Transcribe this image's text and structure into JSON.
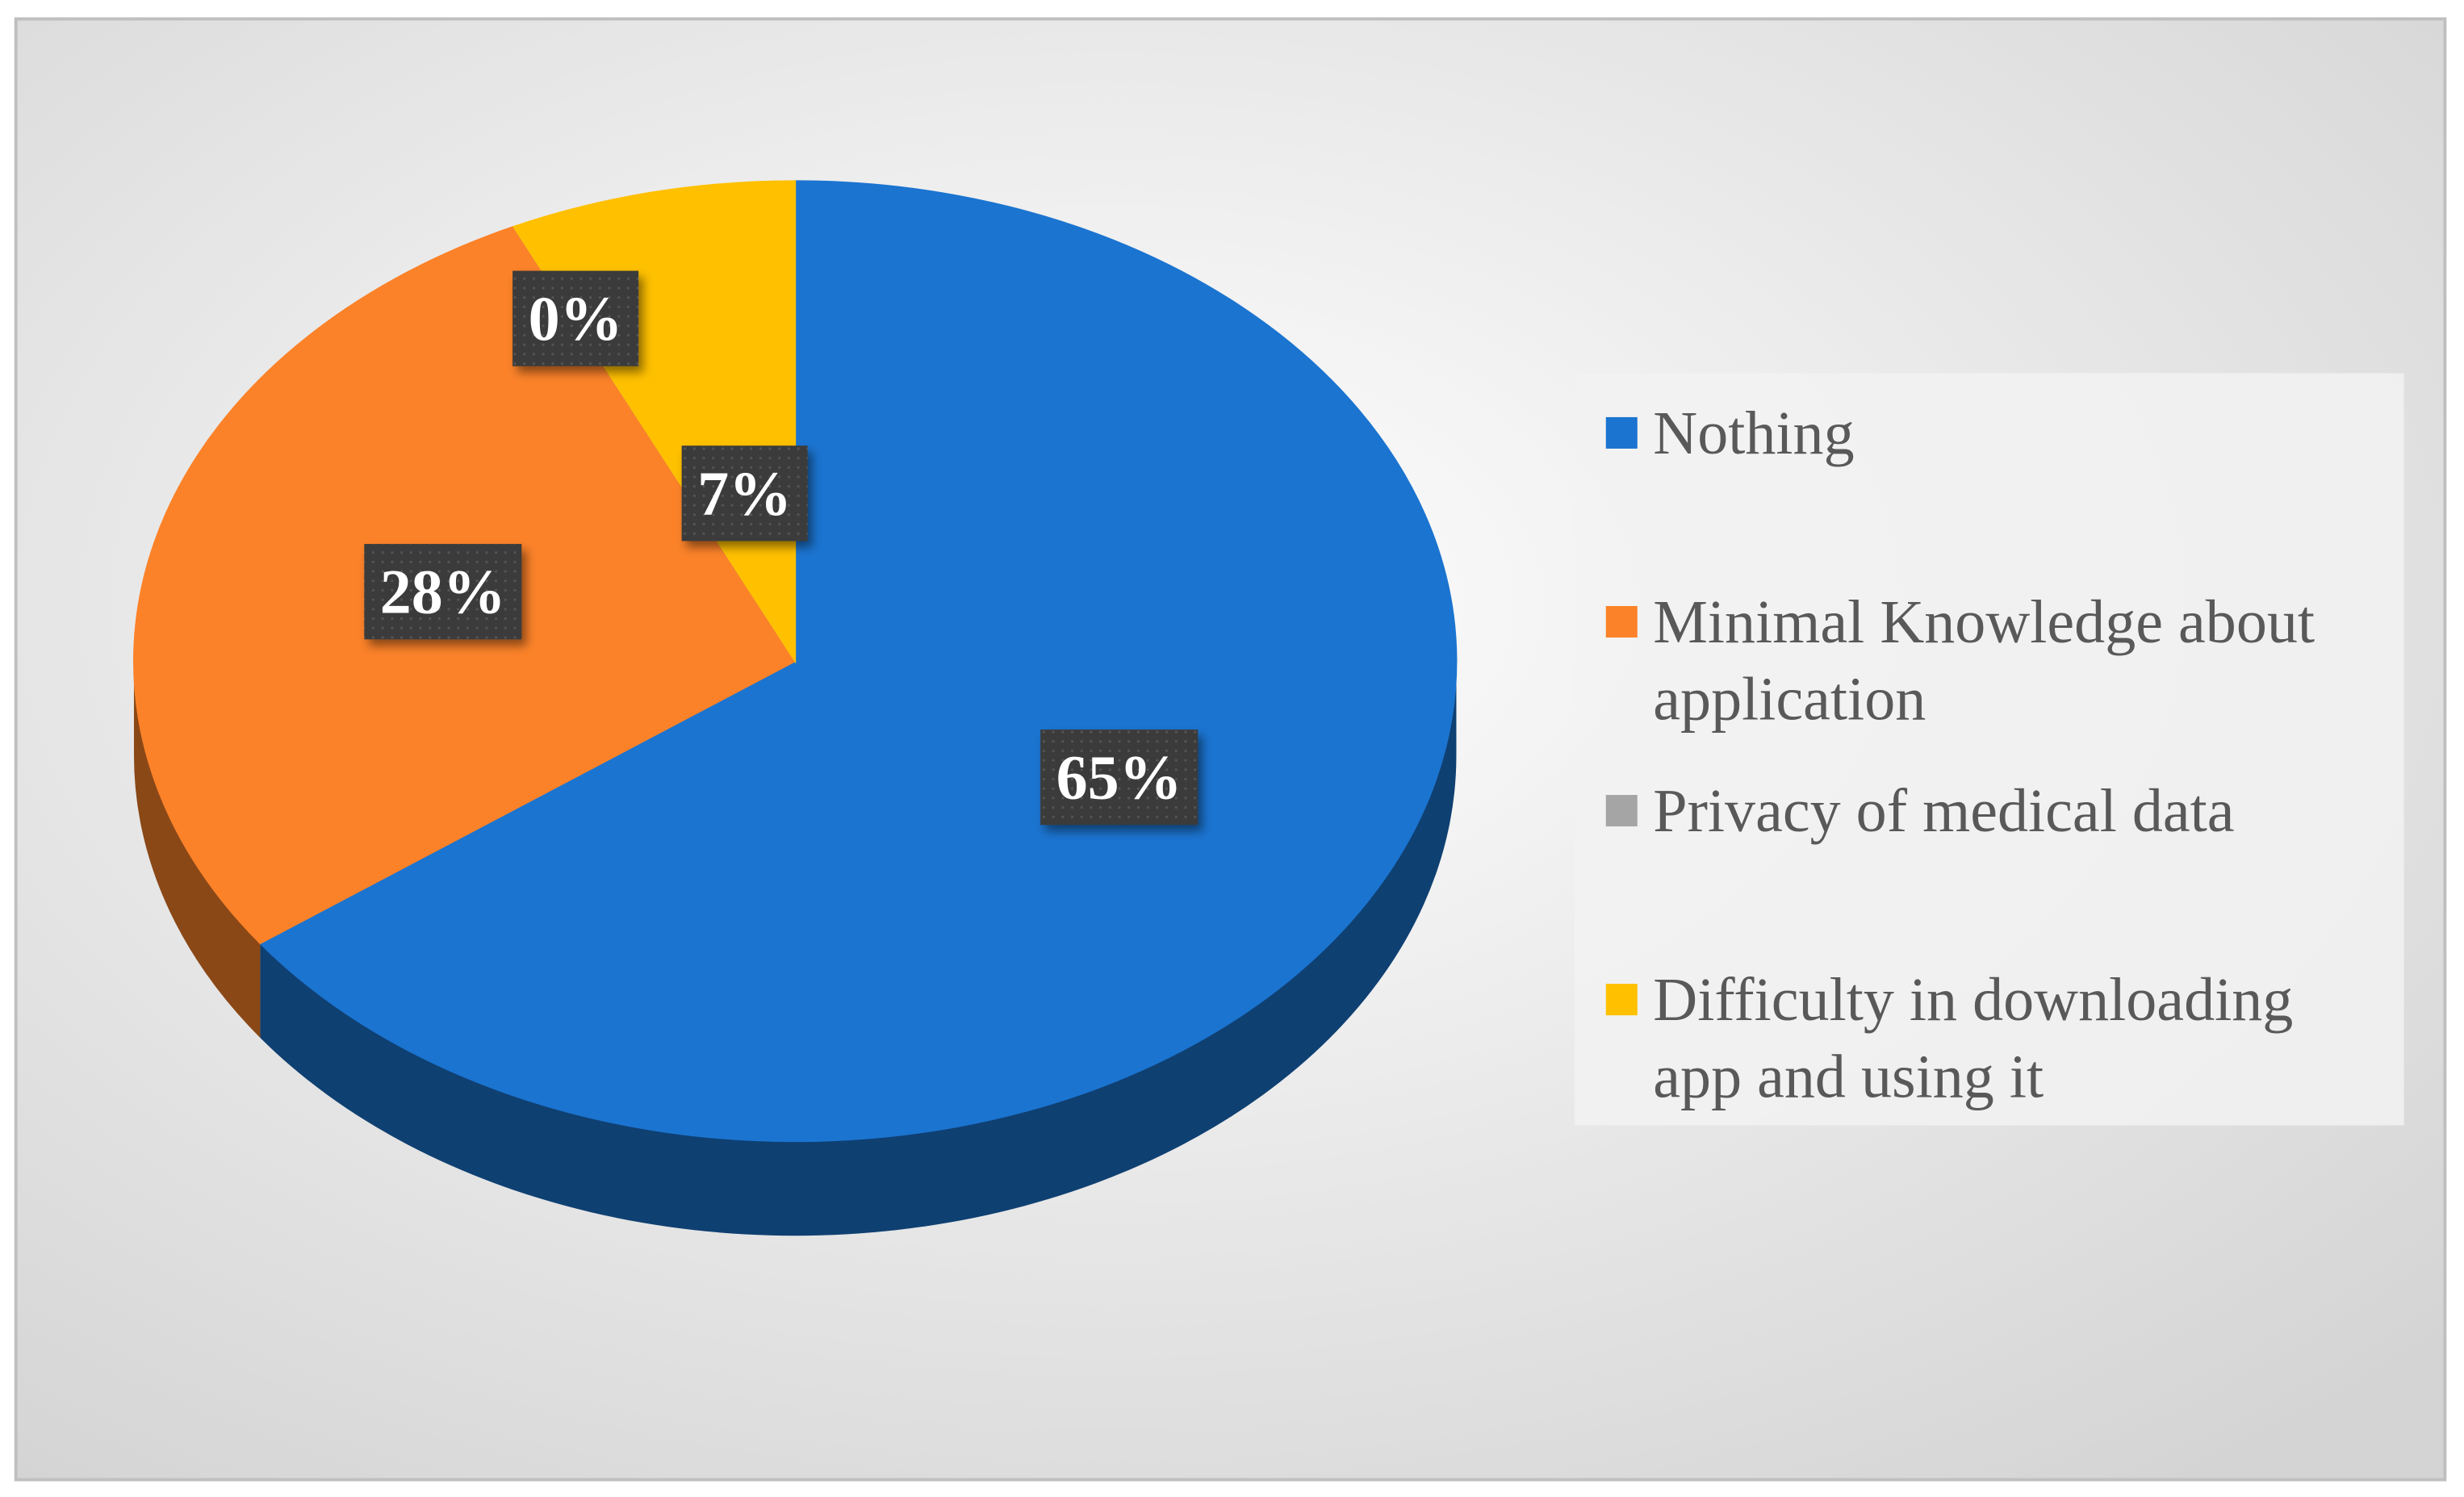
{
  "chart_data": {
    "type": "pie",
    "categories": [
      "Nothing",
      "Minimal Knowledge about application",
      "Privacy of medical data",
      "Difficulty in downloading app and using it"
    ],
    "values": [
      65,
      28,
      0,
      7
    ],
    "value_labels": [
      "65%",
      "28%",
      "0%",
      "7%"
    ],
    "colors": [
      "#1b74d0",
      "#fb8229",
      "#a5a5a5",
      "#ffc000"
    ],
    "legend": "right"
  }
}
